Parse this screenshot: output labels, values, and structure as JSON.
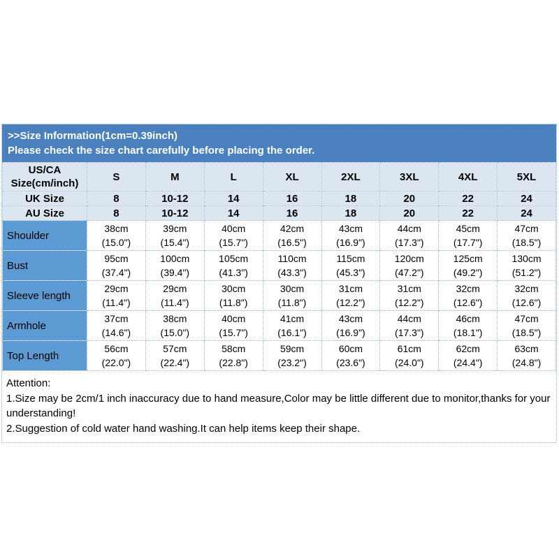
{
  "header": {
    "line1": ">>Size Information(1cm=0.39inch)",
    "line2": "Please check the size chart carefully before placing the order."
  },
  "size_table": {
    "corner_line1": "US/CA",
    "corner_line2": "Size(cm/inch)",
    "size_labels": [
      "S",
      "M",
      "L",
      "XL",
      "2XL",
      "3XL",
      "4XL",
      "5XL"
    ],
    "uk_row": {
      "label": "UK Size",
      "values": [
        "8",
        "10-12",
        "14",
        "16",
        "18",
        "20",
        "22",
        "24"
      ]
    },
    "au_row": {
      "label": "AU Size",
      "values": [
        "8",
        "10-12",
        "14",
        "16",
        "18",
        "20",
        "22",
        "24"
      ]
    },
    "measurement_rows": [
      {
        "label": "Shoulder",
        "cells": [
          {
            "cm": "38cm",
            "in": "(15.0\")"
          },
          {
            "cm": "39cm",
            "in": "(15.4\")"
          },
          {
            "cm": "40cm",
            "in": "(15.7\")"
          },
          {
            "cm": "42cm",
            "in": "(16.5\")"
          },
          {
            "cm": "43cm",
            "in": "(16.9\")"
          },
          {
            "cm": "44cm",
            "in": "(17.3\")"
          },
          {
            "cm": "45cm",
            "in": "(17.7\")"
          },
          {
            "cm": "47cm",
            "in": "(18.5\")"
          }
        ]
      },
      {
        "label": "Bust",
        "cells": [
          {
            "cm": "95cm",
            "in": "(37.4\")"
          },
          {
            "cm": "100cm",
            "in": "(39.4\")"
          },
          {
            "cm": "105cm",
            "in": "(41.3\")"
          },
          {
            "cm": "110cm",
            "in": "(43.3\")"
          },
          {
            "cm": "115cm",
            "in": "(45.3\")"
          },
          {
            "cm": "120cm",
            "in": "(47.2\")"
          },
          {
            "cm": "125cm",
            "in": "(49.2\")"
          },
          {
            "cm": "130cm",
            "in": "(51.2\")"
          }
        ]
      },
      {
        "label": "Sleeve length",
        "cells": [
          {
            "cm": "29cm",
            "in": "(11.4\")"
          },
          {
            "cm": "29cm",
            "in": "(11.4\")"
          },
          {
            "cm": "30cm",
            "in": "(11.8\")"
          },
          {
            "cm": "30cm",
            "in": "(11.8\")"
          },
          {
            "cm": "31cm",
            "in": "(12.2\")"
          },
          {
            "cm": "31cm",
            "in": "(12.2\")"
          },
          {
            "cm": "32cm",
            "in": "(12.6\")"
          },
          {
            "cm": "32cm",
            "in": "(12.6\")"
          }
        ]
      },
      {
        "label": "Armhole",
        "cells": [
          {
            "cm": "37cm",
            "in": "(14.6\")"
          },
          {
            "cm": "38cm",
            "in": "(15.0\")"
          },
          {
            "cm": "40cm",
            "in": "(15.7\")"
          },
          {
            "cm": "41cm",
            "in": "(16.1\")"
          },
          {
            "cm": "43cm",
            "in": "(16.9\")"
          },
          {
            "cm": "44cm",
            "in": "(17.3\")"
          },
          {
            "cm": "46cm",
            "in": "(18.1\")"
          },
          {
            "cm": "47cm",
            "in": "(18.5\")"
          }
        ]
      },
      {
        "label": "Top Length",
        "cells": [
          {
            "cm": "56cm",
            "in": "(22.0\")"
          },
          {
            "cm": "57cm",
            "in": "(22.4\")"
          },
          {
            "cm": "58cm",
            "in": "(22.8\")"
          },
          {
            "cm": "59cm",
            "in": "(23.2\")"
          },
          {
            "cm": "60cm",
            "in": "(23.6\")"
          },
          {
            "cm": "61cm",
            "in": "(24.0\")"
          },
          {
            "cm": "62cm",
            "in": "(24.4\")"
          },
          {
            "cm": "63cm",
            "in": "(24.8\")"
          }
        ]
      }
    ]
  },
  "attention": {
    "heading": "Attention:",
    "line1": "1.Size may be 2cm/1 inch inaccuracy due to hand measure,Color may be little different due to monitor,thanks for your understanding!",
    "line2": "2.Suggestion of cold water hand washing.It can help items keep their shape."
  },
  "colors": {
    "title_band_bg": "#4a80bd",
    "header_cell_bg": "#dce6f1",
    "row_label_bg": "#5b9ad2",
    "grid_dotted": "#95b3d7",
    "title_text": "#ffffff",
    "body_text": "#000000"
  }
}
